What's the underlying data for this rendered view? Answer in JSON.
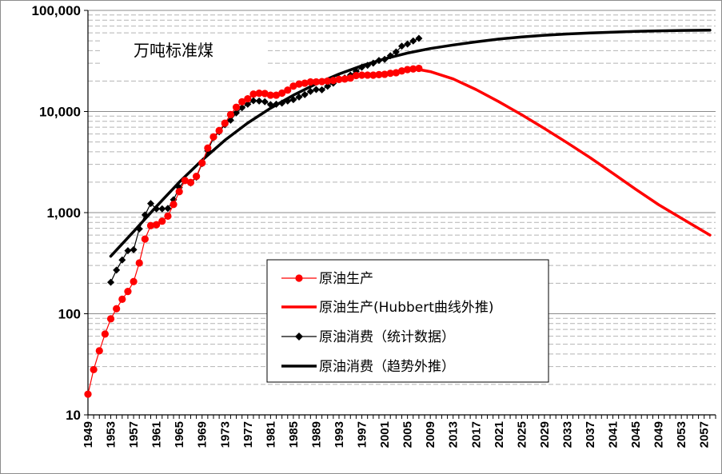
{
  "chart_data": {
    "type": "line",
    "title": "",
    "unit_label": "万吨标准煤",
    "xlabel": "",
    "ylabel": "",
    "y_scale": "log",
    "ylim": [
      10,
      100000
    ],
    "xlim": [
      1949,
      2059
    ],
    "y_ticks": [
      {
        "value": 10,
        "label": "10"
      },
      {
        "value": 100,
        "label": "100"
      },
      {
        "value": 1000,
        "label": "1,000"
      },
      {
        "value": 10000,
        "label": "10,000"
      },
      {
        "value": 100000,
        "label": "100,000"
      }
    ],
    "x_tick_labels": [
      "1949",
      "1953",
      "1957",
      "1961",
      "1965",
      "1969",
      "1973",
      "1977",
      "1981",
      "1985",
      "1989",
      "1993",
      "1997",
      "2001",
      "2005",
      "2009",
      "2013",
      "2017",
      "2021",
      "2025",
      "2029",
      "2033",
      "2037",
      "2041",
      "2045",
      "2049",
      "2053",
      "2057"
    ],
    "grid": {
      "major": true,
      "minor_dashed": true
    },
    "legend_position": "center-left",
    "series": [
      {
        "name": "原油生产",
        "color": "#ff0000",
        "style": "line-markers-circle",
        "points": [
          [
            1949,
            16
          ],
          [
            1950,
            28
          ],
          [
            1951,
            43
          ],
          [
            1952,
            63
          ],
          [
            1953,
            89
          ],
          [
            1954,
            112
          ],
          [
            1955,
            139
          ],
          [
            1956,
            166
          ],
          [
            1957,
            208
          ],
          [
            1958,
            318
          ],
          [
            1959,
            548
          ],
          [
            1960,
            744
          ],
          [
            1961,
            759
          ],
          [
            1962,
            823
          ],
          [
            1963,
            924
          ],
          [
            1964,
            1205
          ],
          [
            1965,
            1613
          ],
          [
            1966,
            2076
          ],
          [
            1967,
            1988
          ],
          [
            1968,
            2285
          ],
          [
            1969,
            3099
          ],
          [
            1970,
            4347
          ],
          [
            1971,
            5612
          ],
          [
            1972,
            6474
          ],
          [
            1973,
            7666
          ],
          [
            1974,
            9325
          ],
          [
            1975,
            11020
          ],
          [
            1976,
            12470
          ],
          [
            1977,
            13360
          ],
          [
            1978,
            14870
          ],
          [
            1979,
            15170
          ],
          [
            1980,
            15060
          ],
          [
            1981,
            14500
          ],
          [
            1982,
            14500
          ],
          [
            1983,
            15190
          ],
          [
            1984,
            16290
          ],
          [
            1985,
            17820
          ],
          [
            1986,
            18690
          ],
          [
            1987,
            19060
          ],
          [
            1988,
            19600
          ],
          [
            1989,
            19640
          ],
          [
            1990,
            19740
          ],
          [
            1991,
            20020
          ],
          [
            1992,
            20250
          ],
          [
            1993,
            20770
          ],
          [
            1994,
            20940
          ],
          [
            1995,
            21400
          ],
          [
            1996,
            22680
          ],
          [
            1997,
            22900
          ],
          [
            1998,
            22910
          ],
          [
            1999,
            22880
          ],
          [
            2000,
            23160
          ],
          [
            2001,
            23340
          ],
          [
            2002,
            23880
          ],
          [
            2003,
            24200
          ],
          [
            2004,
            25190
          ],
          [
            2005,
            25980
          ],
          [
            2006,
            26370
          ],
          [
            2007,
            26700
          ]
        ]
      },
      {
        "name": "原油生产(Hubbert曲线外推)",
        "color": "#ff0000",
        "style": "thick-line",
        "points": [
          [
            2007,
            26000
          ],
          [
            2009,
            24800
          ],
          [
            2013,
            21000
          ],
          [
            2017,
            16500
          ],
          [
            2021,
            12500
          ],
          [
            2025,
            9300
          ],
          [
            2029,
            6800
          ],
          [
            2033,
            4900
          ],
          [
            2037,
            3500
          ],
          [
            2041,
            2450
          ],
          [
            2045,
            1700
          ],
          [
            2049,
            1200
          ],
          [
            2053,
            880
          ],
          [
            2058,
            600
          ]
        ]
      },
      {
        "name": "原油消费（统计数据）",
        "color": "#000000",
        "style": "line-markers-diamond",
        "points": [
          [
            1953,
            205
          ],
          [
            1954,
            270
          ],
          [
            1955,
            340
          ],
          [
            1956,
            420
          ],
          [
            1957,
            430
          ],
          [
            1958,
            690
          ],
          [
            1959,
            950
          ],
          [
            1960,
            1230
          ],
          [
            1961,
            1090
          ],
          [
            1962,
            1090
          ],
          [
            1963,
            1100
          ],
          [
            1964,
            1340
          ],
          [
            1965,
            1770
          ],
          [
            1966,
            2100
          ],
          [
            1967,
            1960
          ],
          [
            1968,
            2240
          ],
          [
            1969,
            3050
          ],
          [
            1970,
            4100
          ],
          [
            1971,
            5500
          ],
          [
            1972,
            6300
          ],
          [
            1973,
            7400
          ],
          [
            1974,
            8200
          ],
          [
            1975,
            9700
          ],
          [
            1976,
            10900
          ],
          [
            1977,
            11800
          ],
          [
            1978,
            12800
          ],
          [
            1979,
            12700
          ],
          [
            1980,
            12500
          ],
          [
            1981,
            11700
          ],
          [
            1982,
            11800
          ],
          [
            1983,
            12100
          ],
          [
            1984,
            12700
          ],
          [
            1985,
            13100
          ],
          [
            1986,
            13900
          ],
          [
            1987,
            14700
          ],
          [
            1988,
            15800
          ],
          [
            1989,
            16500
          ],
          [
            1990,
            16400
          ],
          [
            1991,
            17800
          ],
          [
            1992,
            19100
          ],
          [
            1993,
            21200
          ],
          [
            1994,
            21500
          ],
          [
            1995,
            22900
          ],
          [
            1996,
            25000
          ],
          [
            1997,
            27400
          ],
          [
            1998,
            28600
          ],
          [
            1999,
            30100
          ],
          [
            2000,
            32000
          ],
          [
            2001,
            32800
          ],
          [
            2002,
            35600
          ],
          [
            2003,
            38800
          ],
          [
            2004,
            44300
          ],
          [
            2005,
            46500
          ],
          [
            2006,
            49900
          ],
          [
            2007,
            52900
          ]
        ]
      },
      {
        "name": "原油消费（趋势外推）",
        "color": "#000000",
        "style": "thick-line",
        "points": [
          [
            1953,
            370
          ],
          [
            1957,
            650
          ],
          [
            1961,
            1150
          ],
          [
            1965,
            2000
          ],
          [
            1969,
            3300
          ],
          [
            1973,
            5200
          ],
          [
            1977,
            7700
          ],
          [
            1981,
            10800
          ],
          [
            1985,
            14500
          ],
          [
            1989,
            18800
          ],
          [
            1993,
            23500
          ],
          [
            1997,
            28300
          ],
          [
            2001,
            33200
          ],
          [
            2005,
            37800
          ],
          [
            2009,
            42000
          ],
          [
            2013,
            45500
          ],
          [
            2017,
            48800
          ],
          [
            2021,
            52000
          ],
          [
            2025,
            54500
          ],
          [
            2029,
            56800
          ],
          [
            2033,
            58500
          ],
          [
            2037,
            59800
          ],
          [
            2041,
            61000
          ],
          [
            2045,
            62000
          ],
          [
            2049,
            62800
          ],
          [
            2053,
            63300
          ],
          [
            2058,
            63800
          ]
        ]
      }
    ]
  }
}
